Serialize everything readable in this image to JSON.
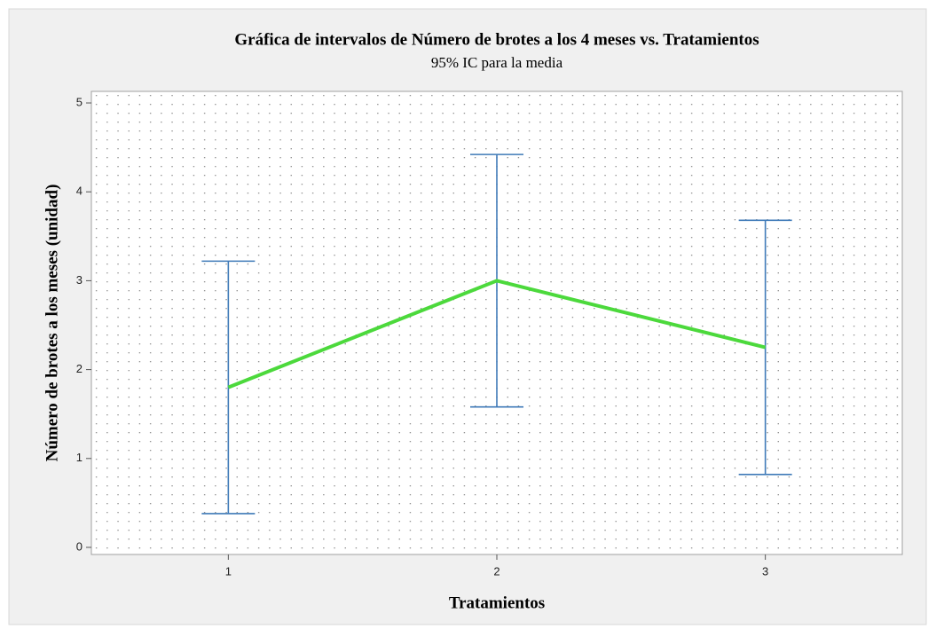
{
  "chart_data": {
    "type": "interval",
    "title": "Gráfica de intervalos de Número de brotes a los 4 meses vs. Tratamientos",
    "subtitle": "95% IC para la media",
    "x_label": "Tratamientos",
    "y_label": "Número de brotes a los meses  (unidad)",
    "x": [
      1,
      2,
      3
    ],
    "values": [
      1.8,
      3.0,
      2.25
    ],
    "errors": [
      1.42,
      1.42,
      1.43
    ],
    "line_color": "#4cd93c",
    "bar_color": "#3f7ab8",
    "xlim": [
      0.49,
      3.51
    ],
    "xticks": [
      1,
      2,
      3
    ],
    "ylim": [
      -0.08,
      5.13
    ],
    "yticks": [
      0,
      1,
      2,
      3,
      4,
      5
    ],
    "grid": true
  }
}
